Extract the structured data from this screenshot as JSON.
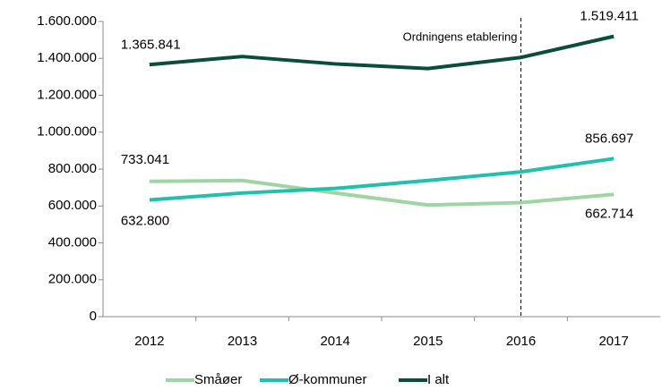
{
  "chart_data": {
    "type": "line",
    "categories": [
      "2012",
      "2013",
      "2014",
      "2015",
      "2016",
      "2017"
    ],
    "series": [
      {
        "name": "Småøer",
        "color": "#9fd4a3",
        "values": [
          733041,
          738000,
          670000,
          605000,
          618000,
          662714
        ],
        "value_labels": [
          "733.041",
          null,
          null,
          null,
          null,
          "662.714"
        ]
      },
      {
        "name": "Ø-kommuner",
        "color": "#20c0ae",
        "values": [
          632800,
          670000,
          695000,
          738000,
          785000,
          856697
        ],
        "value_labels": [
          "632.800",
          null,
          null,
          null,
          null,
          "856.697"
        ]
      },
      {
        "name": "I alt",
        "color": "#0b4d3b",
        "values": [
          1365841,
          1410000,
          1370000,
          1345000,
          1405000,
          1519411
        ],
        "value_labels": [
          "1.365.841",
          null,
          null,
          null,
          null,
          "1.519.411"
        ]
      }
    ],
    "ylim": [
      0,
      1600000
    ],
    "yticks": [
      0,
      {
        "value": 200000,
        "label": "200.000"
      },
      {
        "value": 400000,
        "label": "400.000"
      },
      {
        "value": 600000,
        "label": "600.000"
      },
      {
        "value": 800000,
        "label": "800.000"
      },
      {
        "value": 1000000,
        "label": "1.000.000"
      },
      {
        "value": 1200000,
        "label": "1.200.000"
      },
      {
        "value": 1400000,
        "label": "1.400.000"
      },
      {
        "value": 1600000,
        "label": "1.600.000"
      }
    ],
    "annotations": [
      {
        "text": "Ordningens etablering",
        "x": "2016"
      }
    ],
    "legend": "bottom",
    "grid": false
  }
}
